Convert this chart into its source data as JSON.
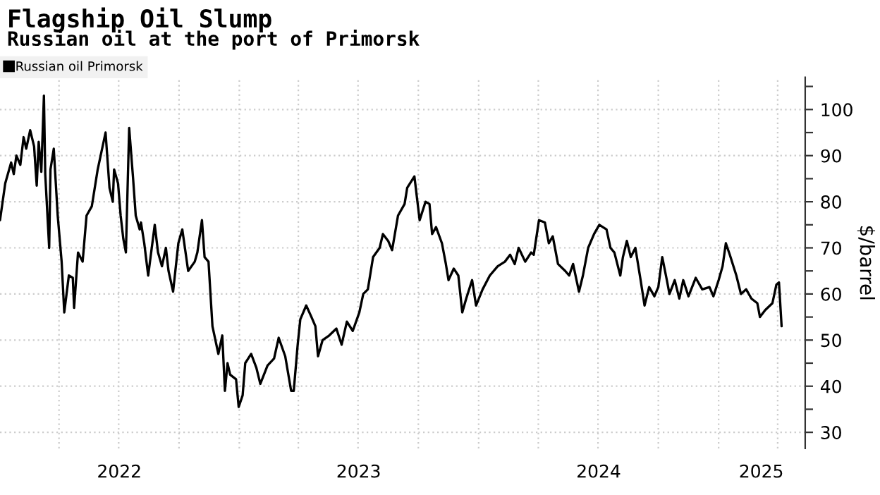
{
  "chart_data": {
    "type": "line",
    "title": "Flagship Oil Slump",
    "subtitle": "Russian oil at the port of Primorsk",
    "ylabel": "$/barrel",
    "x": [
      "2022-01-01",
      "2022-01-09",
      "2022-01-18",
      "2022-01-22",
      "2022-01-26",
      "2022-02-01",
      "2022-02-06",
      "2022-02-10",
      "2022-02-16",
      "2022-02-22",
      "2022-02-26",
      "2022-03-01",
      "2022-03-05",
      "2022-03-09",
      "2022-03-11",
      "2022-03-17",
      "2022-03-19",
      "2022-03-24",
      "2022-03-30",
      "2022-04-05",
      "2022-04-09",
      "2022-04-16",
      "2022-04-22",
      "2022-04-24",
      "2022-04-30",
      "2022-05-07",
      "2022-05-13",
      "2022-05-21",
      "2022-05-30",
      "2022-06-05",
      "2022-06-11",
      "2022-06-13",
      "2022-06-17",
      "2022-06-22",
      "2022-06-24",
      "2022-06-30",
      "2022-07-04",
      "2022-07-08",
      "2022-07-12",
      "2022-07-17",
      "2022-07-23",
      "2022-07-27",
      "2022-08-02",
      "2022-08-04",
      "2022-08-09",
      "2022-08-15",
      "2022-08-25",
      "2022-08-30",
      "2022-09-05",
      "2022-09-11",
      "2022-09-15",
      "2022-09-22",
      "2022-09-30",
      "2022-10-06",
      "2022-10-15",
      "2022-10-25",
      "2022-10-29",
      "2022-11-05",
      "2022-11-09",
      "2022-11-15",
      "2022-11-21",
      "2022-11-30",
      "2022-12-06",
      "2022-12-10",
      "2022-12-14",
      "2022-12-18",
      "2022-12-27",
      "2022-12-31",
      "2023-01-06",
      "2023-01-10",
      "2023-01-19",
      "2023-01-27",
      "2023-02-02",
      "2023-02-13",
      "2023-02-23",
      "2023-03-02",
      "2023-03-12",
      "2023-03-21",
      "2023-03-25",
      "2023-03-31",
      "2023-04-04",
      "2023-04-13",
      "2023-04-21",
      "2023-04-27",
      "2023-05-01",
      "2023-05-08",
      "2023-05-18",
      "2023-05-29",
      "2023-06-06",
      "2023-06-14",
      "2023-06-23",
      "2023-07-03",
      "2023-07-09",
      "2023-07-16",
      "2023-07-24",
      "2023-08-03",
      "2023-08-08",
      "2023-08-16",
      "2023-08-22",
      "2023-08-31",
      "2023-09-10",
      "2023-09-14",
      "2023-09-25",
      "2023-10-03",
      "2023-10-12",
      "2023-10-18",
      "2023-10-22",
      "2023-10-28",
      "2023-11-06",
      "2023-11-12",
      "2023-11-16",
      "2023-11-24",
      "2023-12-01",
      "2023-12-07",
      "2023-12-13",
      "2023-12-22",
      "2023-12-28",
      "2024-01-07",
      "2024-01-18",
      "2024-01-30",
      "2024-02-10",
      "2024-02-18",
      "2024-02-25",
      "2024-03-02",
      "2024-03-12",
      "2024-03-21",
      "2024-03-25",
      "2024-04-02",
      "2024-04-11",
      "2024-04-17",
      "2024-04-23",
      "2024-05-01",
      "2024-05-12",
      "2024-05-18",
      "2024-05-24",
      "2024-06-02",
      "2024-06-08",
      "2024-06-16",
      "2024-06-25",
      "2024-07-03",
      "2024-07-14",
      "2024-07-20",
      "2024-07-26",
      "2024-08-04",
      "2024-08-08",
      "2024-08-14",
      "2024-08-20",
      "2024-08-27",
      "2024-09-04",
      "2024-09-10",
      "2024-09-17",
      "2024-09-25",
      "2024-10-01",
      "2024-10-07",
      "2024-10-14",
      "2024-10-18",
      "2024-10-26",
      "2024-11-02",
      "2024-11-08",
      "2024-11-16",
      "2024-11-27",
      "2024-12-07",
      "2024-12-18",
      "2024-12-24",
      "2025-01-01",
      "2025-01-07",
      "2025-01-12",
      "2025-01-18",
      "2025-01-28",
      "2025-02-04",
      "2025-02-12",
      "2025-02-20",
      "2025-03-01",
      "2025-03-05",
      "2025-03-13",
      "2025-03-24",
      "2025-03-30",
      "2025-04-03",
      "2025-04-07"
    ],
    "series": [
      {
        "name": "Russian oil Primorsk",
        "color": "#000000",
        "values": [
          76,
          84,
          88.5,
          86,
          90,
          88,
          94,
          91.5,
          95.5,
          92,
          83.5,
          93,
          86.5,
          103,
          86,
          70,
          87,
          91.5,
          77,
          67,
          56,
          64,
          63.5,
          57,
          69,
          67,
          77,
          79,
          87,
          91,
          95,
          91,
          83,
          80,
          87,
          84,
          77,
          72,
          69,
          96,
          85,
          77,
          74,
          75.5,
          71,
          64,
          75,
          69,
          66,
          70,
          65,
          60.5,
          71,
          74,
          65,
          67,
          69,
          76,
          68,
          67,
          53,
          47,
          51,
          39,
          45,
          42.5,
          41.5,
          35.5,
          38,
          45,
          47,
          44,
          40.5,
          44.5,
          46,
          50.5,
          46.5,
          39,
          39,
          49,
          54.5,
          57.5,
          55,
          53,
          46.5,
          50,
          51,
          52.5,
          49,
          54,
          52,
          56,
          60,
          61,
          68,
          70,
          73,
          71.5,
          69.5,
          77,
          79.5,
          83,
          85.5,
          76,
          80,
          79.5,
          73,
          74.5,
          71,
          66.5,
          63,
          65.5,
          64,
          56,
          59,
          63,
          57.5,
          61,
          64,
          66,
          67,
          68.5,
          66.5,
          70,
          67,
          69,
          68.5,
          76,
          75.5,
          71,
          72.5,
          66.5,
          65,
          64,
          66.5,
          60.5,
          64,
          70,
          73,
          75,
          74,
          70,
          69,
          64,
          68,
          71.5,
          68,
          70,
          63,
          57.5,
          61.5,
          59.5,
          61.5,
          68,
          63,
          60,
          63,
          59,
          63,
          59.5,
          63.5,
          61,
          61.5,
          59.5,
          63,
          66,
          71,
          68.5,
          64,
          60,
          61,
          59,
          58,
          55,
          56.5,
          58,
          62,
          62.5,
          53
        ]
      }
    ],
    "xlim": [
      "2022-01-01",
      "2025-05-13"
    ],
    "xticks": [
      {
        "value": "2022-04-01",
        "label": null
      },
      {
        "value": "2022-07-01",
        "label": null
      },
      {
        "value": "2022-10-01",
        "label": null
      },
      {
        "value": "2023-01-01",
        "label": null
      },
      {
        "value": "2023-04-01",
        "label": null
      },
      {
        "value": "2023-07-01",
        "label": null
      },
      {
        "value": "2023-10-01",
        "label": null
      },
      {
        "value": "2024-01-01",
        "label": null
      },
      {
        "value": "2024-04-01",
        "label": null
      },
      {
        "value": "2024-07-01",
        "label": null
      },
      {
        "value": "2024-10-01",
        "label": null
      },
      {
        "value": "2025-01-01",
        "label": null
      },
      {
        "value": "2025-04-01",
        "label": null
      },
      {
        "value": "2022-07-02",
        "label": "2022"
      },
      {
        "value": "2023-07-02",
        "label": "2023"
      },
      {
        "value": "2024-07-02",
        "label": "2024"
      },
      {
        "value": "2025-03-07",
        "label": "2025"
      }
    ],
    "ylim": [
      26.5,
      107
    ],
    "yticks": [
      30,
      {
        "value": 35,
        "label": null
      },
      40,
      {
        "value": 45,
        "label": null
      },
      50,
      {
        "value": 55,
        "label": null
      },
      60,
      {
        "value": 65,
        "label": null
      },
      70,
      {
        "value": 75,
        "label": null
      },
      80,
      {
        "value": 85,
        "label": null
      },
      90,
      {
        "value": 95,
        "label": null
      },
      100,
      {
        "value": 105,
        "label": null
      }
    ],
    "grid": true,
    "legend": "top left",
    "marker": "none",
    "line_style": "solid"
  }
}
